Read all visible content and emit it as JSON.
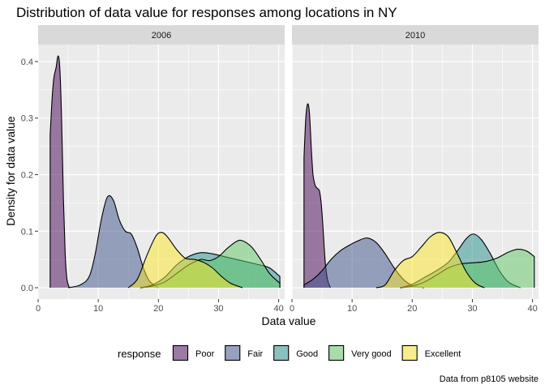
{
  "chart_data": {
    "type": "area",
    "title": "Distribution of data value for responses among locations in NY",
    "xlabel": "Data value",
    "ylabel": "Density for data value",
    "caption": "Data from p8105 website",
    "xlim": [
      0,
      41
    ],
    "ylim": [
      -0.02,
      0.43
    ],
    "x_ticks": [
      0,
      10,
      20,
      30,
      40
    ],
    "y_ticks": [
      0.0,
      0.1,
      0.2,
      0.3,
      0.4
    ],
    "grid": true,
    "legend": {
      "title": "response",
      "position": "bottom",
      "entries": [
        {
          "label": "Poor",
          "color": "#440154"
        },
        {
          "label": "Fair",
          "color": "#3B528B"
        },
        {
          "label": "Good",
          "color": "#21908C"
        },
        {
          "label": "Very good",
          "color": "#5DC863"
        },
        {
          "label": "Excellent",
          "color": "#FDE725"
        }
      ]
    },
    "panels": [
      {
        "label": "2006",
        "series": [
          {
            "name": "Poor",
            "points": [
              [
                2.0,
                0.27
              ],
              [
                2.3,
                0.33
              ],
              [
                2.6,
                0.37
              ],
              [
                3.0,
                0.39
              ],
              [
                3.3,
                0.41
              ],
              [
                3.6,
                0.39
              ],
              [
                3.9,
                0.3
              ],
              [
                4.2,
                0.16
              ],
              [
                4.5,
                0.06
              ],
              [
                4.8,
                0.015
              ],
              [
                5.2,
                0.0
              ]
            ]
          },
          {
            "name": "Fair",
            "points": [
              [
                5.0,
                0.0
              ],
              [
                7.0,
                0.005
              ],
              [
                8.5,
                0.02
              ],
              [
                9.5,
                0.06
              ],
              [
                10.5,
                0.12
              ],
              [
                11.5,
                0.16
              ],
              [
                12.5,
                0.155
              ],
              [
                13.5,
                0.12
              ],
              [
                14.5,
                0.1
              ],
              [
                15.5,
                0.095
              ],
              [
                16.5,
                0.07
              ],
              [
                17.5,
                0.035
              ],
              [
                18.5,
                0.012
              ],
              [
                20.0,
                0.0
              ]
            ]
          },
          {
            "name": "Good",
            "points": [
              [
                17.0,
                0.0
              ],
              [
                19.0,
                0.005
              ],
              [
                21.0,
                0.018
              ],
              [
                23.0,
                0.04
              ],
              [
                25.0,
                0.055
              ],
              [
                27.0,
                0.062
              ],
              [
                29.0,
                0.06
              ],
              [
                31.0,
                0.055
              ],
              [
                33.0,
                0.05
              ],
              [
                35.0,
                0.045
              ],
              [
                37.0,
                0.04
              ],
              [
                38.5,
                0.035
              ],
              [
                40.2,
                0.02
              ]
            ]
          },
          {
            "name": "Very good",
            "points": [
              [
                17.0,
                0.0
              ],
              [
                19.0,
                0.003
              ],
              [
                21.0,
                0.01
              ],
              [
                23.0,
                0.025
              ],
              [
                25.0,
                0.04
              ],
              [
                27.0,
                0.05
              ],
              [
                28.5,
                0.048
              ],
              [
                30.0,
                0.055
              ],
              [
                31.5,
                0.07
              ],
              [
                33.0,
                0.082
              ],
              [
                34.0,
                0.083
              ],
              [
                35.5,
                0.072
              ],
              [
                37.0,
                0.05
              ],
              [
                38.5,
                0.025
              ],
              [
                40.2,
                0.008
              ]
            ]
          },
          {
            "name": "Excellent",
            "points": [
              [
                15.0,
                0.0
              ],
              [
                16.5,
                0.015
              ],
              [
                18.0,
                0.055
              ],
              [
                19.5,
                0.09
              ],
              [
                20.5,
                0.098
              ],
              [
                21.5,
                0.09
              ],
              [
                23.0,
                0.068
              ],
              [
                24.5,
                0.052
              ],
              [
                26.0,
                0.05
              ],
              [
                27.5,
                0.045
              ],
              [
                29.0,
                0.035
              ],
              [
                30.5,
                0.02
              ],
              [
                32.0,
                0.008
              ],
              [
                34.0,
                0.0
              ]
            ]
          }
        ]
      },
      {
        "label": "2010",
        "series": [
          {
            "name": "Poor",
            "points": [
              [
                2.0,
                0.23
              ],
              [
                2.3,
                0.3
              ],
              [
                2.6,
                0.325
              ],
              [
                2.9,
                0.31
              ],
              [
                3.2,
                0.25
              ],
              [
                3.5,
                0.2
              ],
              [
                3.9,
                0.18
              ],
              [
                4.3,
                0.175
              ],
              [
                4.6,
                0.17
              ],
              [
                4.9,
                0.145
              ],
              [
                5.2,
                0.1
              ],
              [
                5.5,
                0.05
              ],
              [
                5.9,
                0.015
              ],
              [
                6.4,
                0.0
              ]
            ]
          },
          {
            "name": "Fair",
            "points": [
              [
                2.0,
                0.005
              ],
              [
                3.5,
                0.015
              ],
              [
                5.0,
                0.03
              ],
              [
                6.5,
                0.05
              ],
              [
                8.0,
                0.065
              ],
              [
                9.5,
                0.075
              ],
              [
                11.0,
                0.083
              ],
              [
                12.5,
                0.088
              ],
              [
                14.0,
                0.08
              ],
              [
                15.5,
                0.06
              ],
              [
                17.0,
                0.035
              ],
              [
                18.5,
                0.015
              ],
              [
                20.0,
                0.004
              ],
              [
                22.0,
                0.0
              ]
            ]
          },
          {
            "name": "Good",
            "points": [
              [
                18.0,
                0.0
              ],
              [
                20.0,
                0.006
              ],
              [
                22.0,
                0.018
              ],
              [
                24.0,
                0.03
              ],
              [
                26.0,
                0.045
              ],
              [
                27.5,
                0.065
              ],
              [
                29.0,
                0.087
              ],
              [
                30.2,
                0.095
              ],
              [
                31.5,
                0.085
              ],
              [
                33.0,
                0.06
              ],
              [
                34.5,
                0.03
              ],
              [
                36.0,
                0.01
              ],
              [
                38.0,
                0.0
              ]
            ]
          },
          {
            "name": "Very good",
            "points": [
              [
                18.0,
                0.0
              ],
              [
                20.0,
                0.003
              ],
              [
                22.0,
                0.01
              ],
              [
                24.0,
                0.022
              ],
              [
                26.0,
                0.035
              ],
              [
                28.0,
                0.042
              ],
              [
                30.0,
                0.044
              ],
              [
                32.0,
                0.046
              ],
              [
                34.0,
                0.052
              ],
              [
                36.0,
                0.063
              ],
              [
                37.5,
                0.068
              ],
              [
                39.0,
                0.065
              ],
              [
                40.3,
                0.055
              ]
            ]
          },
          {
            "name": "Excellent",
            "points": [
              [
                14.0,
                0.0
              ],
              [
                15.5,
                0.005
              ],
              [
                17.0,
                0.03
              ],
              [
                18.5,
                0.048
              ],
              [
                20.0,
                0.055
              ],
              [
                21.5,
                0.072
              ],
              [
                23.0,
                0.09
              ],
              [
                24.5,
                0.098
              ],
              [
                26.0,
                0.09
              ],
              [
                27.5,
                0.06
              ],
              [
                29.0,
                0.028
              ],
              [
                30.5,
                0.008
              ],
              [
                32.0,
                0.0
              ]
            ]
          }
        ]
      }
    ]
  }
}
